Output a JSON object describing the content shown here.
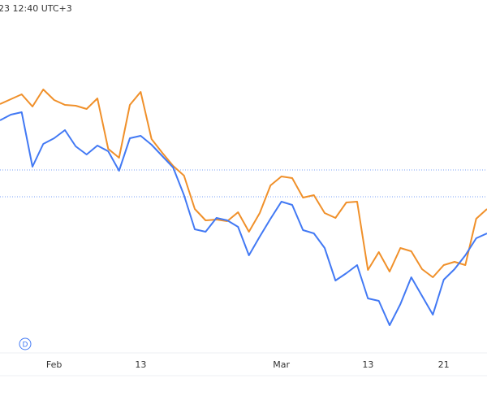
{
  "header": {
    "timestamp": "23 12:40 UTC+3",
    "badge": "D"
  },
  "chart_data": {
    "type": "line",
    "categories": [
      null,
      null,
      null,
      null,
      null,
      "Feb",
      null,
      null,
      null,
      null,
      null,
      null,
      null,
      "13",
      null,
      null,
      null,
      null,
      null,
      null,
      null,
      null,
      null,
      null,
      null,
      null,
      "Mar",
      null,
      null,
      null,
      null,
      null,
      null,
      null,
      "13",
      null,
      null,
      null,
      null,
      null,
      null,
      "21",
      null,
      null,
      null,
      null
    ],
    "series": [
      {
        "color": "#f0902a",
        "values": [
          302,
          308,
          314,
          299,
          320,
          307,
          301,
          300,
          296,
          309,
          247,
          236,
          301,
          317,
          259,
          242,
          226,
          214,
          173,
          159,
          160,
          158,
          169,
          145,
          168,
          202,
          213,
          211,
          187,
          190,
          168,
          162,
          181,
          182,
          98,
          120,
          96,
          125,
          121,
          99,
          89,
          104,
          108,
          104,
          161,
          173
        ]
      },
      {
        "color": "#4279f4",
        "values": [
          282,
          289,
          292,
          225,
          253,
          260,
          270,
          250,
          240,
          251,
          244,
          220,
          260,
          263,
          252,
          238,
          224,
          190,
          148,
          145,
          162,
          159,
          151,
          116,
          139,
          161,
          182,
          178,
          147,
          143,
          125,
          85,
          94,
          104,
          63,
          60,
          30,
          56,
          89,
          66,
          43,
          86,
          99,
          116,
          137,
          143
        ]
      }
    ],
    "reference_lines": [
      221,
      188
    ],
    "ylim": [
      0,
      430
    ]
  }
}
